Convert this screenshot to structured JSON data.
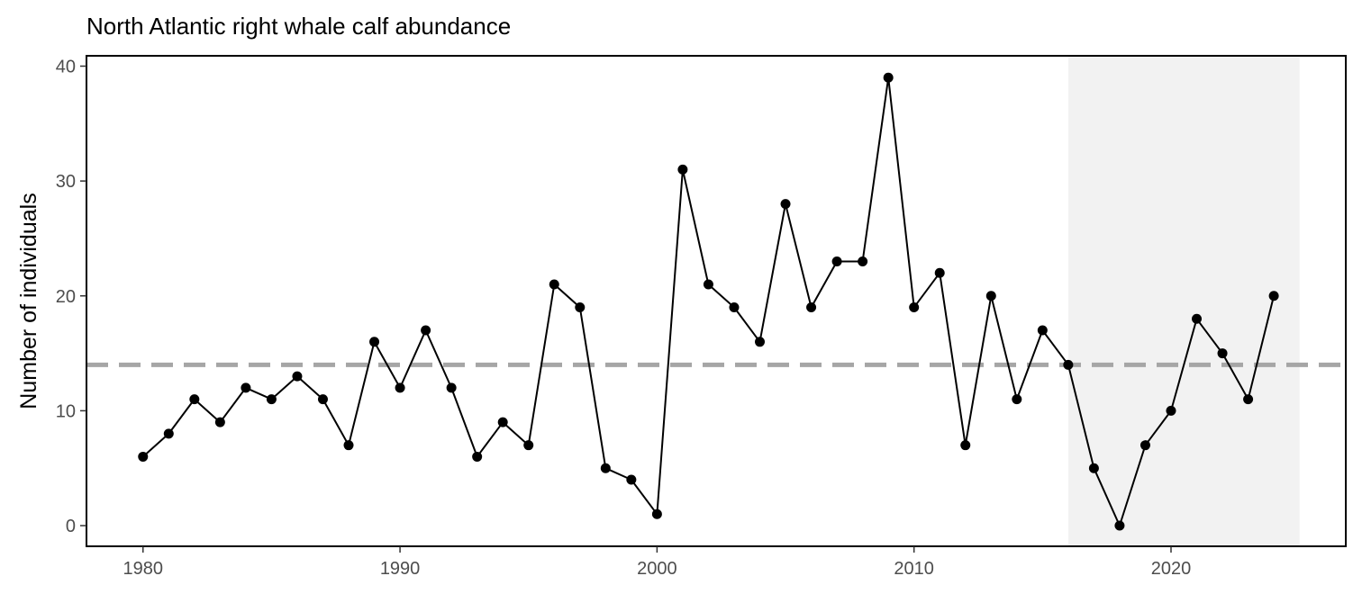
{
  "chart_data": {
    "type": "line",
    "title": "North Atlantic right whale calf abundance",
    "xlabel": "",
    "ylabel": "Number of individuals",
    "xlim": [
      1977.8,
      2026.8
    ],
    "ylim": [
      -1.8,
      40.9
    ],
    "x_ticks": [
      1980,
      1990,
      2000,
      2010,
      2020
    ],
    "y_ticks": [
      0,
      10,
      20,
      30,
      40
    ],
    "grid": false,
    "reference_line": {
      "y": 14,
      "style": "dashed",
      "color": "#a6a6a6"
    },
    "shaded_region": {
      "x_start": 2016,
      "x_end": 2025,
      "color": "#f2f2f2"
    },
    "series": [
      {
        "color": "#000000",
        "x": [
          1980,
          1981,
          1982,
          1983,
          1984,
          1985,
          1986,
          1987,
          1988,
          1989,
          1990,
          1991,
          1992,
          1993,
          1994,
          1995,
          1996,
          1997,
          1998,
          1999,
          2000,
          2001,
          2002,
          2003,
          2004,
          2005,
          2006,
          2007,
          2008,
          2009,
          2010,
          2011,
          2012,
          2013,
          2014,
          2015,
          2016,
          2017,
          2018,
          2019,
          2020,
          2021,
          2022,
          2023,
          2024
        ],
        "values": [
          6,
          8,
          11,
          9,
          12,
          11,
          13,
          11,
          7,
          16,
          12,
          17,
          12,
          6,
          9,
          7,
          21,
          19,
          5,
          4,
          1,
          31,
          21,
          19,
          16,
          28,
          19,
          23,
          23,
          39,
          19,
          22,
          7,
          20,
          11,
          17,
          14,
          5,
          0,
          7,
          10,
          18,
          15,
          11,
          20
        ]
      }
    ]
  }
}
